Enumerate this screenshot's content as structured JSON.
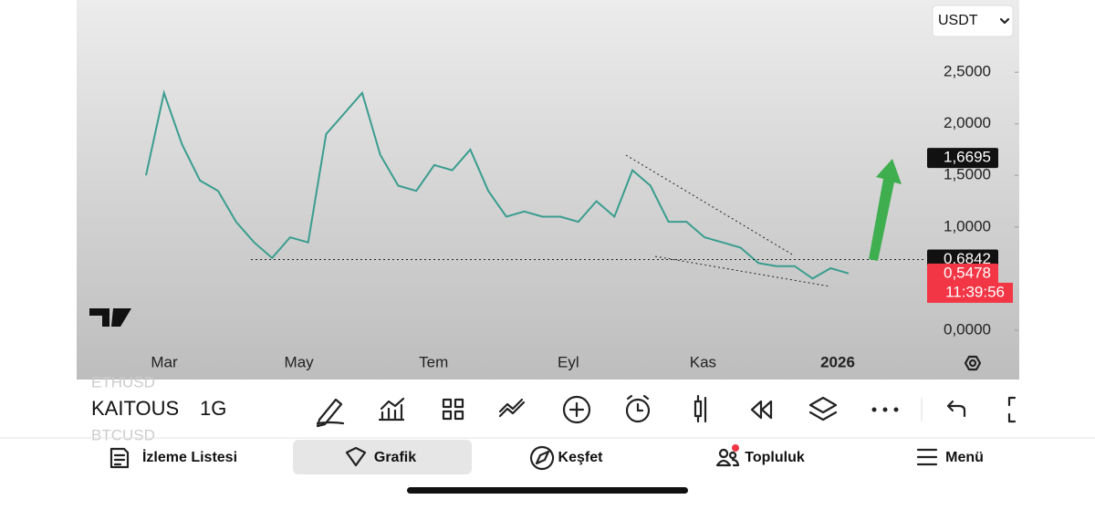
{
  "toolbar": {
    "currency": "USDT",
    "symbol": "KAITOUS",
    "interval": "1G",
    "symbol_above": "ETHUSD",
    "symbol_below": "BTCUSD"
  },
  "chart_data": {
    "type": "line",
    "x_labels": [
      "Mar",
      "May",
      "Tem",
      "Eyl",
      "Kas",
      "2026"
    ],
    "values": [
      1.5,
      2.3,
      1.8,
      1.45,
      1.35,
      1.05,
      0.85,
      0.7,
      0.9,
      0.85,
      1.9,
      2.1,
      2.3,
      1.7,
      1.4,
      1.35,
      1.6,
      1.55,
      1.75,
      1.35,
      1.1,
      1.15,
      1.1,
      1.1,
      1.05,
      1.25,
      1.1,
      1.55,
      1.4,
      1.05,
      1.05,
      0.9,
      0.85,
      0.8,
      0.65,
      0.62,
      0.62,
      0.5,
      0.6,
      0.55
    ],
    "color": "#3a9d8f",
    "ylim": [
      -0.47,
      3.2
    ],
    "yticks": [
      {
        "value": 0,
        "label": "0,0000"
      },
      {
        "value": 1,
        "label": "1,0000"
      },
      {
        "value": 1.5,
        "label": "1,5000"
      },
      {
        "value": 2,
        "label": "2,0000"
      },
      {
        "value": 2.5,
        "label": "2,5000"
      }
    ],
    "price_labels": [
      {
        "value": 1.6695,
        "label": "1,6695"
      },
      {
        "value": 0.6842,
        "label": "0,6842"
      },
      {
        "value": 0.5478,
        "label": "0,5478"
      }
    ],
    "countdown": "11:39:56"
  },
  "nav": {
    "tabs": [
      "İzleme Listesi",
      "Grafik",
      "Keşfet",
      "Topluluk",
      "Menü"
    ],
    "active": 1
  }
}
